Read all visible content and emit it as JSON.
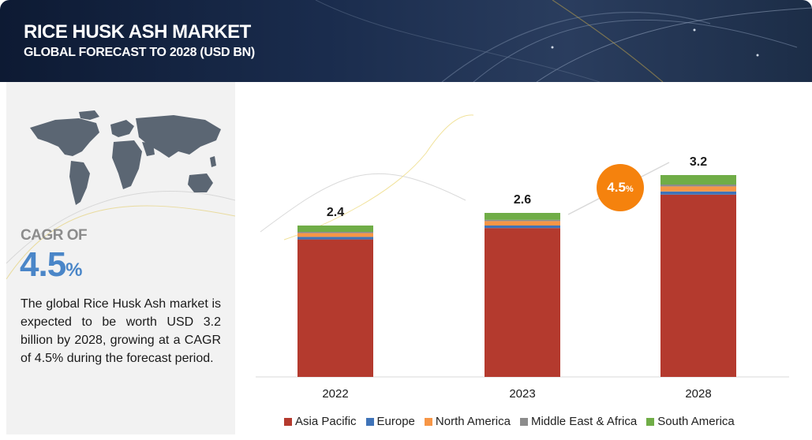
{
  "header": {
    "title": "RICE HUSK ASH MARKET",
    "subtitle": "GLOBAL FORECAST TO 2028 (USD BN)"
  },
  "left": {
    "cagr_label": "CAGR OF",
    "cagr_value": "4.5",
    "cagr_unit": "%",
    "description": "The global Rice Husk Ash market is expected to be worth USD 3.2 billion by 2028, growing at a CAGR of 4.5% during the forecast period."
  },
  "bubble": {
    "value": "4.5",
    "unit": "%"
  },
  "chart_data": {
    "type": "bar",
    "stacked": true,
    "categories": [
      "2022",
      "2023",
      "2028"
    ],
    "totals": [
      2.4,
      2.6,
      3.2
    ],
    "total_labels": [
      "2.4",
      "2.6",
      "3.2"
    ],
    "series": [
      {
        "name": "Asia Pacific",
        "color": "#b43a2e",
        "values": [
          2.18,
          2.36,
          2.89
        ]
      },
      {
        "name": "Europe",
        "color": "#3f73b8",
        "values": [
          0.04,
          0.04,
          0.05
        ]
      },
      {
        "name": "North America",
        "color": "#f79646",
        "values": [
          0.06,
          0.07,
          0.08
        ]
      },
      {
        "name": "Middle East & Africa",
        "color": "#8c8c8c",
        "values": [
          0.02,
          0.02,
          0.03
        ]
      },
      {
        "name": "South America",
        "color": "#70ad47",
        "values": [
          0.1,
          0.11,
          0.15
        ]
      }
    ],
    "ylim": [
      0,
      3.5
    ],
    "grid": false,
    "legend_position": "bottom",
    "annotation": "4.5%"
  }
}
